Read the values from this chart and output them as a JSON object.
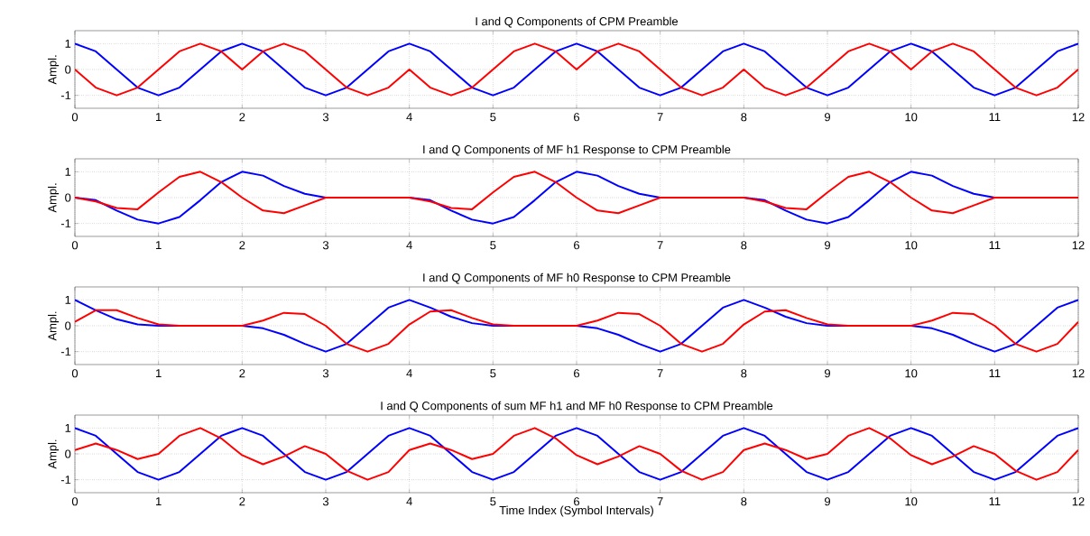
{
  "chart_data": [
    {
      "type": "line",
      "title": "I and Q Components of CPM Preamble",
      "ylabel": "Ampl.",
      "xlim": [
        0,
        12
      ],
      "xticks": [
        0,
        1,
        2,
        3,
        4,
        5,
        6,
        7,
        8,
        9,
        10,
        11,
        12
      ],
      "ylim": [
        -1.5,
        1.5
      ],
      "yticks": [
        -1,
        0,
        1
      ],
      "grid": true,
      "x": [
        0,
        0.25,
        0.5,
        0.75,
        1,
        1.25,
        1.5,
        1.75,
        2,
        2.25,
        2.5,
        2.75,
        3,
        3.25,
        3.5,
        3.75,
        4,
        4.25,
        4.5,
        4.75,
        5,
        5.25,
        5.5,
        5.75,
        6,
        6.25,
        6.5,
        6.75,
        7,
        7.25,
        7.5,
        7.75,
        8,
        8.25,
        8.5,
        8.75,
        9,
        9.25,
        9.5,
        9.75,
        10,
        10.25,
        10.5,
        10.75,
        11,
        11.25,
        11.5,
        11.75,
        12
      ],
      "series": [
        {
          "color": "#0000ff",
          "values": [
            1,
            0.7,
            0,
            -0.7,
            -1,
            -0.7,
            0,
            0.7,
            1,
            0.7,
            0,
            -0.7,
            -1,
            -0.7,
            0,
            0.7,
            1,
            0.7,
            0,
            -0.7,
            -1,
            -0.7,
            0,
            0.7,
            1,
            0.7,
            0,
            -0.7,
            -1,
            -0.7,
            0,
            0.7,
            1,
            0.7,
            0,
            -0.7,
            -1,
            -0.7,
            0,
            0.7,
            1,
            0.7,
            0,
            -0.7,
            -1,
            -0.7,
            0,
            0.7,
            1
          ]
        },
        {
          "color": "#ff0000",
          "values": [
            0,
            -0.7,
            -1,
            -0.7,
            0,
            0.7,
            1,
            0.7,
            0,
            0.7,
            1,
            0.7,
            0,
            -0.7,
            -1,
            -0.7,
            0,
            -0.7,
            -1,
            -0.7,
            0,
            0.7,
            1,
            0.7,
            0,
            0.7,
            1,
            0.7,
            0,
            -0.7,
            -1,
            -0.7,
            0,
            -0.7,
            -1,
            -0.7,
            0,
            0.7,
            1,
            0.7,
            0,
            0.7,
            1,
            0.7,
            0,
            -0.7,
            -1,
            -0.7,
            0
          ]
        }
      ]
    },
    {
      "type": "line",
      "title": "I and Q Components of MF h1 Response to CPM Preamble",
      "ylabel": "Ampl.",
      "xlim": [
        0,
        12
      ],
      "xticks": [
        0,
        1,
        2,
        3,
        4,
        5,
        6,
        7,
        8,
        9,
        10,
        11,
        12
      ],
      "ylim": [
        -1.5,
        1.5
      ],
      "yticks": [
        -1,
        0,
        1
      ],
      "grid": true,
      "x": [
        0,
        0.25,
        0.5,
        0.75,
        1,
        1.25,
        1.5,
        1.75,
        2,
        2.25,
        2.5,
        2.75,
        3,
        3.25,
        3.5,
        3.75,
        4,
        4.25,
        4.5,
        4.75,
        5,
        5.25,
        5.5,
        5.75,
        6,
        6.25,
        6.5,
        6.75,
        7,
        7.25,
        7.5,
        7.75,
        8,
        8.25,
        8.5,
        8.75,
        9,
        9.25,
        9.5,
        9.75,
        10,
        10.25,
        10.5,
        10.75,
        11,
        11.25,
        11.5,
        11.75,
        12
      ],
      "series": [
        {
          "color": "#0000ff",
          "values": [
            0,
            -0.1,
            -0.5,
            -0.85,
            -1,
            -0.75,
            -0.1,
            0.6,
            1,
            0.85,
            0.45,
            0.15,
            0,
            0,
            0,
            0,
            0,
            -0.1,
            -0.5,
            -0.85,
            -1,
            -0.75,
            -0.1,
            0.6,
            1,
            0.85,
            0.45,
            0.15,
            0,
            0,
            0,
            0,
            0,
            -0.1,
            -0.5,
            -0.85,
            -1,
            -0.75,
            -0.1,
            0.6,
            1,
            0.85,
            0.45,
            0.15,
            0,
            0,
            null,
            null,
            null
          ]
        },
        {
          "color": "#ff0000",
          "values": [
            0,
            -0.15,
            -0.4,
            -0.45,
            0.2,
            0.8,
            1,
            0.6,
            0,
            -0.5,
            -0.6,
            -0.3,
            0,
            0,
            0,
            0,
            0,
            -0.15,
            -0.4,
            -0.45,
            0.2,
            0.8,
            1,
            0.6,
            0,
            -0.5,
            -0.6,
            -0.3,
            0,
            0,
            0,
            0,
            0,
            -0.15,
            -0.4,
            -0.45,
            0.2,
            0.8,
            1,
            0.6,
            0,
            -0.5,
            -0.6,
            -0.3,
            0,
            0,
            0,
            0,
            0
          ]
        }
      ]
    },
    {
      "type": "line",
      "title": "I and Q Components of MF h0 Response to CPM Preamble",
      "ylabel": "Ampl.",
      "xlim": [
        0,
        12
      ],
      "xticks": [
        0,
        1,
        2,
        3,
        4,
        5,
        6,
        7,
        8,
        9,
        10,
        11,
        12
      ],
      "ylim": [
        -1.5,
        1.5
      ],
      "yticks": [
        -1,
        0,
        1
      ],
      "grid": true,
      "x": [
        0,
        0.25,
        0.5,
        0.75,
        1,
        1.25,
        1.5,
        1.75,
        2,
        2.25,
        2.5,
        2.75,
        3,
        3.25,
        3.5,
        3.75,
        4,
        4.25,
        4.5,
        4.75,
        5,
        5.25,
        5.5,
        5.75,
        6,
        6.25,
        6.5,
        6.75,
        7,
        7.25,
        7.5,
        7.75,
        8,
        8.25,
        8.5,
        8.75,
        9,
        9.25,
        9.5,
        9.75,
        10,
        10.25,
        10.5,
        10.75,
        11,
        11.25,
        11.5,
        11.75,
        12
      ],
      "series": [
        {
          "color": "#0000ff",
          "values": [
            1,
            0.6,
            0.25,
            0.05,
            0,
            0,
            0,
            0,
            0,
            -0.1,
            -0.35,
            -0.7,
            -1,
            -0.7,
            0,
            0.7,
            1,
            0.7,
            0.35,
            0.1,
            0,
            0,
            0,
            0,
            0,
            -0.1,
            -0.35,
            -0.7,
            -1,
            -0.7,
            0,
            0.7,
            1,
            0.7,
            0.35,
            0.1,
            0,
            0,
            0,
            0,
            0,
            -0.1,
            -0.35,
            -0.7,
            -1,
            -0.7,
            0,
            0.7,
            1
          ]
        },
        {
          "color": "#ff0000",
          "values": [
            0.15,
            0.6,
            0.6,
            0.3,
            0.05,
            0,
            0,
            0,
            0,
            0.2,
            0.5,
            0.45,
            0,
            -0.7,
            -1,
            -0.7,
            0.05,
            0.55,
            0.6,
            0.3,
            0.05,
            0,
            0,
            0,
            0,
            0.2,
            0.5,
            0.45,
            0,
            -0.7,
            -1,
            -0.7,
            0.05,
            0.55,
            0.6,
            0.3,
            0.05,
            0,
            0,
            0,
            0,
            0.2,
            0.5,
            0.45,
            0,
            -0.7,
            -1,
            -0.7,
            0.15
          ]
        }
      ]
    },
    {
      "type": "line",
      "title": "I and Q Components of sum MF h1 and MF h0 Response to CPM Preamble",
      "xlabel": "Time Index (Symbol Intervals)",
      "ylabel": "Ampl.",
      "xlim": [
        0,
        12
      ],
      "xticks": [
        0,
        1,
        2,
        3,
        4,
        5,
        6,
        7,
        8,
        9,
        10,
        11,
        12
      ],
      "ylim": [
        -1.5,
        1.5
      ],
      "yticks": [
        -1,
        0,
        1
      ],
      "grid": true,
      "x": [
        0,
        0.25,
        0.5,
        0.75,
        1,
        1.25,
        1.5,
        1.75,
        2,
        2.25,
        2.5,
        2.75,
        3,
        3.25,
        3.5,
        3.75,
        4,
        4.25,
        4.5,
        4.75,
        5,
        5.25,
        5.5,
        5.75,
        6,
        6.25,
        6.5,
        6.75,
        7,
        7.25,
        7.5,
        7.75,
        8,
        8.25,
        8.5,
        8.75,
        9,
        9.25,
        9.5,
        9.75,
        10,
        10.25,
        10.5,
        10.75,
        11,
        11.25,
        11.5,
        11.75,
        12
      ],
      "series": [
        {
          "color": "#0000ff",
          "values": [
            1,
            0.7,
            0,
            -0.7,
            -1,
            -0.7,
            0,
            0.7,
            1,
            0.7,
            0,
            -0.7,
            -1,
            -0.7,
            0,
            0.7,
            1,
            0.7,
            0,
            -0.7,
            -1,
            -0.7,
            0,
            0.7,
            1,
            0.7,
            0,
            -0.7,
            -1,
            -0.7,
            0,
            0.7,
            1,
            0.7,
            0,
            -0.7,
            -1,
            -0.7,
            0,
            0.7,
            1,
            0.7,
            0,
            -0.7,
            -1,
            -0.7,
            0,
            0.7,
            1
          ]
        },
        {
          "color": "#ff0000",
          "values": [
            0.15,
            0.4,
            0.15,
            -0.2,
            0,
            0.7,
            1,
            0.6,
            -0.05,
            -0.4,
            -0.1,
            0.3,
            0,
            -0.65,
            -1,
            -0.7,
            0.15,
            0.4,
            0.15,
            -0.2,
            0,
            0.7,
            1,
            0.6,
            -0.05,
            -0.4,
            -0.1,
            0.3,
            0,
            -0.65,
            -1,
            -0.7,
            0.15,
            0.4,
            0.15,
            -0.2,
            0,
            0.7,
            1,
            0.6,
            -0.05,
            -0.4,
            -0.1,
            0.3,
            0,
            -0.65,
            -1,
            -0.7,
            0.15
          ]
        }
      ]
    }
  ]
}
